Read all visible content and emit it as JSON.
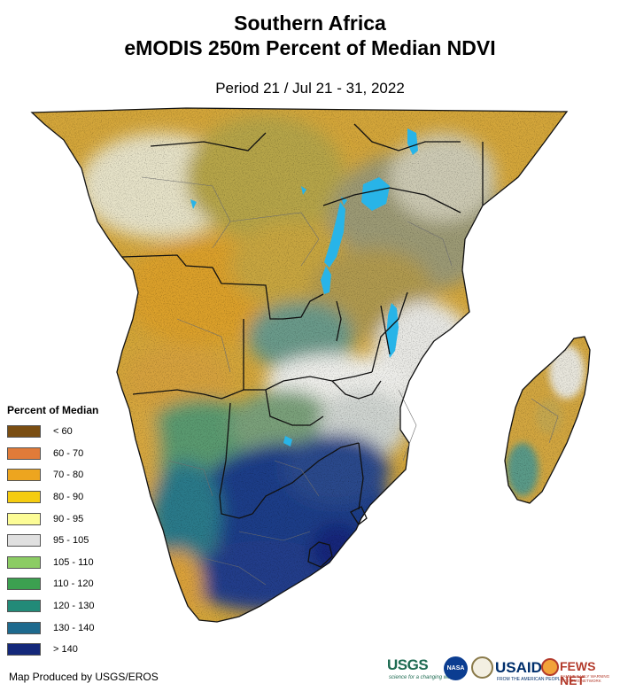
{
  "title_line1": "Southern Africa",
  "title_line2": "eMODIS 250m Percent of Median NDVI",
  "period": "Period 21 / Jul 21 - 31, 2022",
  "legend": {
    "title": "Percent of Median",
    "items": [
      {
        "label": "< 60",
        "color": "#7a4e12"
      },
      {
        "label": "60 - 70",
        "color": "#e07b39"
      },
      {
        "label": "70 - 80",
        "color": "#eda51f"
      },
      {
        "label": "80 - 90",
        "color": "#f5cc10"
      },
      {
        "label": "90 - 95",
        "color": "#fcfc96"
      },
      {
        "label": "95 - 105",
        "color": "#e0e0e0"
      },
      {
        "label": "105 - 110",
        "color": "#8ccc64"
      },
      {
        "label": "110 - 120",
        "color": "#3ca050"
      },
      {
        "label": "120 - 130",
        "color": "#228a78"
      },
      {
        "label": "130 - 140",
        "color": "#1e6a8e"
      },
      {
        "label": "> 140",
        "color": "#14287a"
      }
    ]
  },
  "footer": "Map Produced by USGS/EROS",
  "logos": {
    "usgs": "USGS",
    "usgs_tagline": "science for a changing world",
    "nasa": "NASA",
    "usaid": "USAID",
    "usaid_tagline": "FROM THE AMERICAN PEOPLE",
    "fews": "FEWS NET",
    "fews_tagline": "FAMINE EARLY WARNING SYSTEMS NETWORK"
  },
  "colors": {
    "water": "#28b4e8",
    "border": "#111111",
    "admin_border": "#6e6e6e"
  }
}
